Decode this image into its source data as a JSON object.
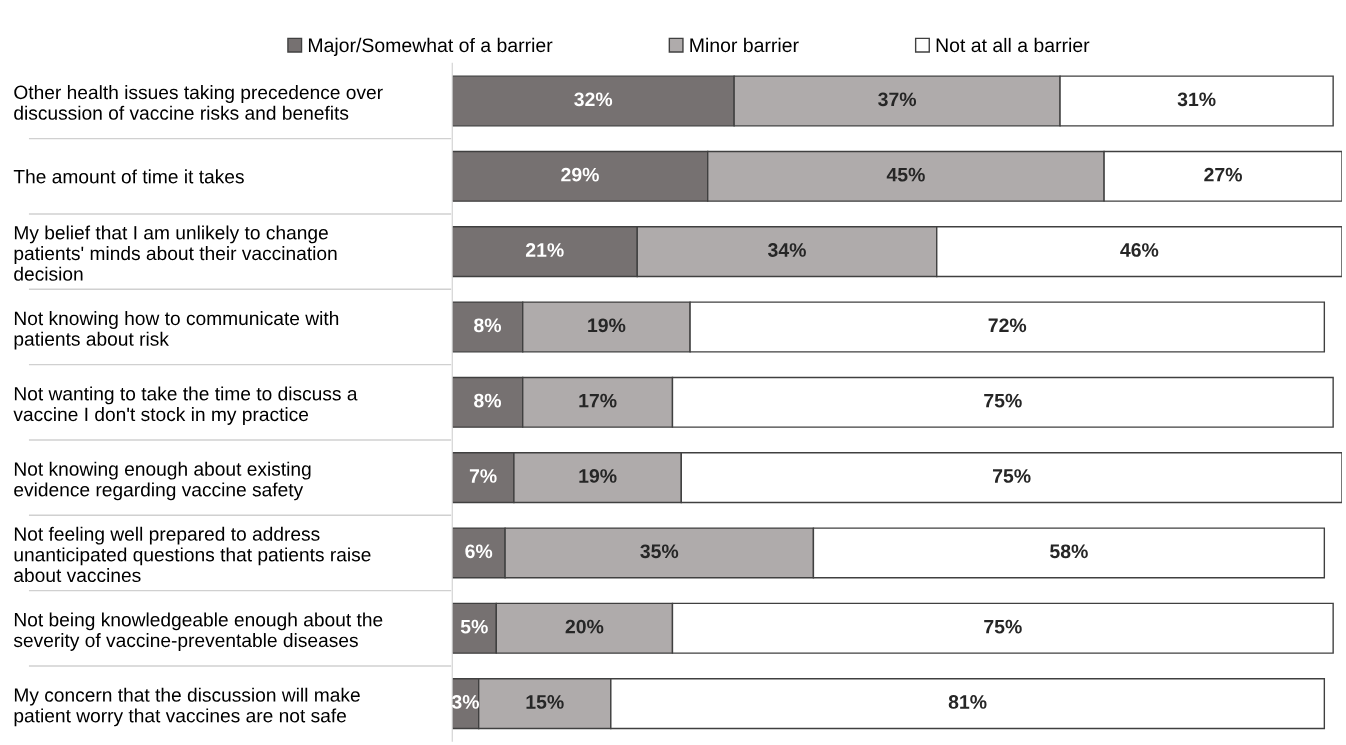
{
  "chart_data": {
    "type": "bar",
    "orientation": "horizontal",
    "stacked": true,
    "legend": "top",
    "data_labels": false,
    "categories": [
      "Other health issues taking precedence over\ndiscussion of vaccine risks and benefits",
      "The amount of time it takes",
      "My belief that I am unlikely to change\npatients' minds about their vaccination\ndecision",
      "Not knowing how to communicate with\npatients about risk",
      "Not wanting to take the time to discuss a\nvaccine I don't stock in my practice",
      "Not knowing enough about existing\nevidence regarding vaccine safety",
      "Not feeling well prepared to address\nunanticipated questions that patients raise\nabout vaccines",
      "Not being knowledgeable enough about the\nseverity of vaccine-preventable diseases",
      "My concern that the discussion will make\npatient worry that vaccines are not safe"
    ],
    "series": [
      {
        "name": "Major/Somewhat of a barrier",
        "color": "#767171",
        "values": [
          32,
          29,
          21,
          8,
          8,
          7,
          6,
          5,
          3
        ],
        "value_labels": [
          "32%",
          "29%",
          "21%",
          "8%",
          "8%",
          "7%",
          "6%",
          "5%",
          "3%"
        ]
      },
      {
        "name": "Minor barrier",
        "color": "#afabab",
        "values": [
          37,
          45,
          34,
          19,
          17,
          19,
          35,
          20,
          15
        ],
        "value_labels": [
          "37%",
          "45%",
          "34%",
          "19%",
          "17%",
          "19%",
          "35%",
          "20%",
          "15%"
        ]
      },
      {
        "name": "Not at all a barrier",
        "color": "#ffffff",
        "values": [
          31,
          27,
          46,
          72,
          75,
          75,
          58,
          75,
          81
        ],
        "value_labels": [
          "31%",
          "27%",
          "46%",
          "72%",
          "75%",
          "75%",
          "58%",
          "75%",
          "81%"
        ]
      }
    ]
  }
}
